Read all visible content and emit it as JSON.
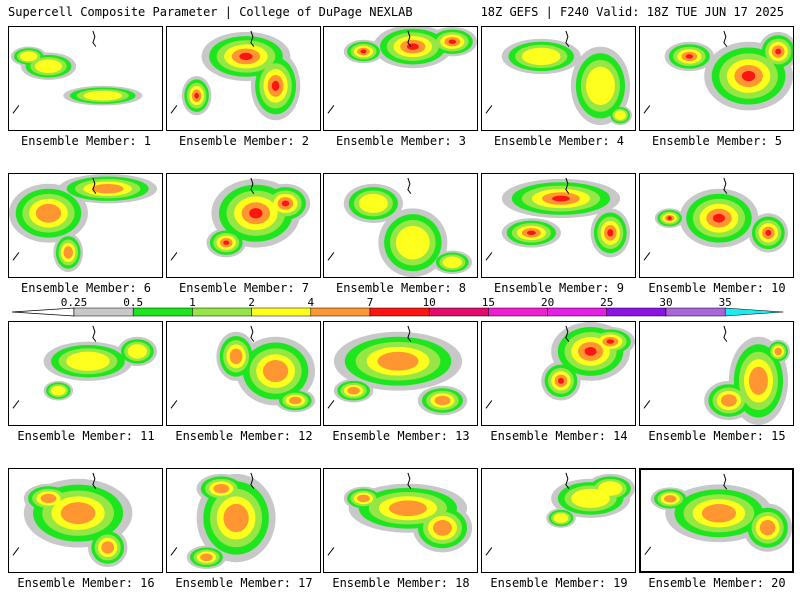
{
  "header": {
    "title": "Supercell Composite Parameter | College of DuPage NEXLAB",
    "run_info": "18Z GEFS | F240 Valid: 18Z TUE JUN 17 2025"
  },
  "colors": {
    "0.25": "#c8c8c8",
    "0.5": "#1ee61e",
    "1": "#96e646",
    "2": "#ffff1e",
    "4": "#ff9632",
    "7": "#ff1414",
    "10": "#e60a6e",
    "15": "#f01ed2",
    "20": "#e61ee6",
    "25": "#8c14e6",
    "30": "#aa64dc",
    "35": "#1eebf0"
  },
  "legend": {
    "ticks": [
      "0.25",
      "0.5",
      "1",
      "2",
      "4",
      "7",
      "10",
      "15",
      "20",
      "25",
      "30",
      "35"
    ]
  },
  "members": [
    {
      "label": "Ensemble Member: 1",
      "selected": false,
      "intensity": 2
    },
    {
      "label": "Ensemble Member: 2",
      "selected": false,
      "intensity": 7
    },
    {
      "label": "Ensemble Member: 3",
      "selected": false,
      "intensity": 7
    },
    {
      "label": "Ensemble Member: 4",
      "selected": false,
      "intensity": 2
    },
    {
      "label": "Ensemble Member: 5",
      "selected": false,
      "intensity": 7
    },
    {
      "label": "Ensemble Member: 6",
      "selected": false,
      "intensity": 4
    },
    {
      "label": "Ensemble Member: 7",
      "selected": false,
      "intensity": 7
    },
    {
      "label": "Ensemble Member: 8",
      "selected": false,
      "intensity": 2
    },
    {
      "label": "Ensemble Member: 9",
      "selected": false,
      "intensity": 7
    },
    {
      "label": "Ensemble Member: 10",
      "selected": false,
      "intensity": 7
    },
    {
      "label": "Ensemble Member: 11",
      "selected": false,
      "intensity": 2
    },
    {
      "label": "Ensemble Member: 12",
      "selected": false,
      "intensity": 4
    },
    {
      "label": "Ensemble Member: 13",
      "selected": false,
      "intensity": 4
    },
    {
      "label": "Ensemble Member: 14",
      "selected": false,
      "intensity": 7
    },
    {
      "label": "Ensemble Member: 15",
      "selected": false,
      "intensity": 4
    },
    {
      "label": "Ensemble Member: 16",
      "selected": false,
      "intensity": 4
    },
    {
      "label": "Ensemble Member: 17",
      "selected": false,
      "intensity": 4
    },
    {
      "label": "Ensemble Member: 18",
      "selected": false,
      "intensity": 4
    },
    {
      "label": "Ensemble Member: 19",
      "selected": false,
      "intensity": 2
    },
    {
      "label": "Ensemble Member: 20",
      "selected": true,
      "intensity": 4
    }
  ]
}
